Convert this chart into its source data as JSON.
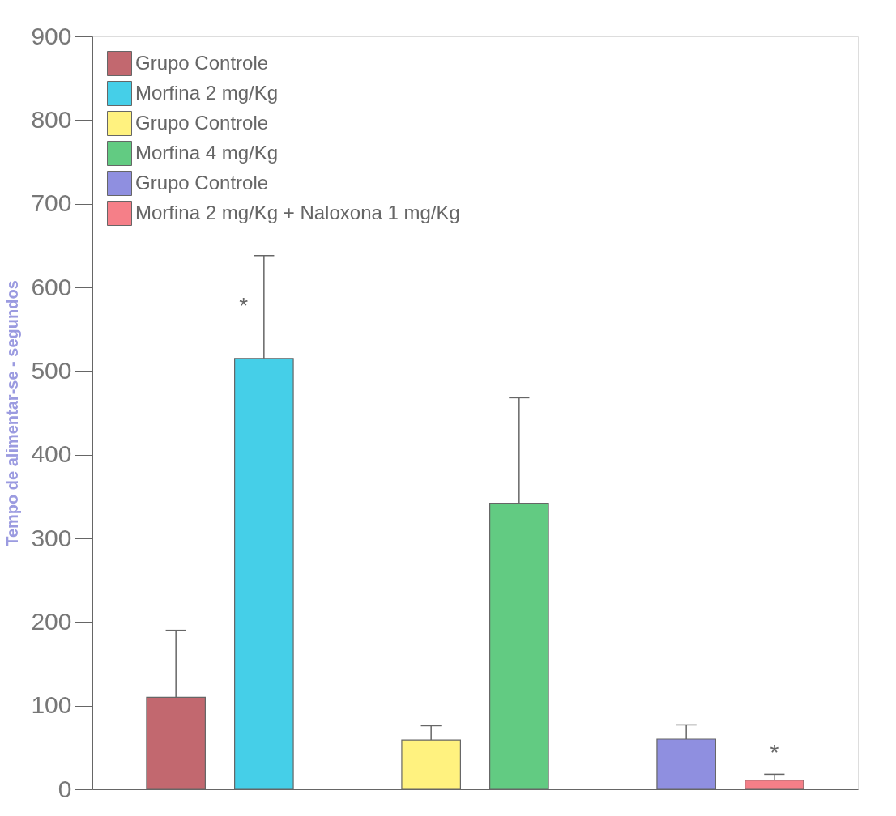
{
  "chart_data": {
    "type": "bar",
    "ylabel": "Tempo de alimentar-se - segundos",
    "categories": [
      null,
      null,
      null
    ],
    "series": [
      {
        "name": "Grupo Controle",
        "color": "#c2686f",
        "values": [
          110,
          null,
          null
        ],
        "errors": [
          [
            110,
            190
          ],
          null,
          null
        ]
      },
      {
        "name": "Morfina 2 mg/Kg",
        "color": "#45cfe8",
        "values": [
          515,
          null,
          null
        ],
        "value_labels": [
          "*",
          null,
          null
        ],
        "errors": [
          [
            515,
            638
          ],
          null,
          null
        ]
      },
      {
        "name": "Grupo Controle",
        "color": "#fff27f",
        "values": [
          null,
          59,
          null
        ],
        "errors": [
          null,
          [
            59,
            76
          ],
          null
        ]
      },
      {
        "name": "Morfina 4 mg/Kg",
        "color": "#62cb82",
        "values": [
          null,
          342,
          null
        ],
        "errors": [
          null,
          [
            342,
            468
          ],
          null
        ]
      },
      {
        "name": "Grupo Controle",
        "color": "#8f8fe0",
        "values": [
          null,
          null,
          60
        ],
        "errors": [
          null,
          null,
          [
            60,
            77
          ]
        ]
      },
      {
        "name": "Morfina 2 mg/Kg + Naloxona 1 mg/Kg",
        "color": "#f57f88",
        "values": [
          null,
          null,
          11
        ],
        "value_labels": [
          null,
          null,
          "*"
        ],
        "errors": [
          null,
          null,
          [
            11,
            18
          ]
        ]
      }
    ],
    "ylim": [
      0,
      900
    ],
    "yticks": [
      0,
      100,
      200,
      300,
      400,
      500,
      600,
      700,
      800,
      900
    ],
    "legend": "top left",
    "grid": false
  }
}
